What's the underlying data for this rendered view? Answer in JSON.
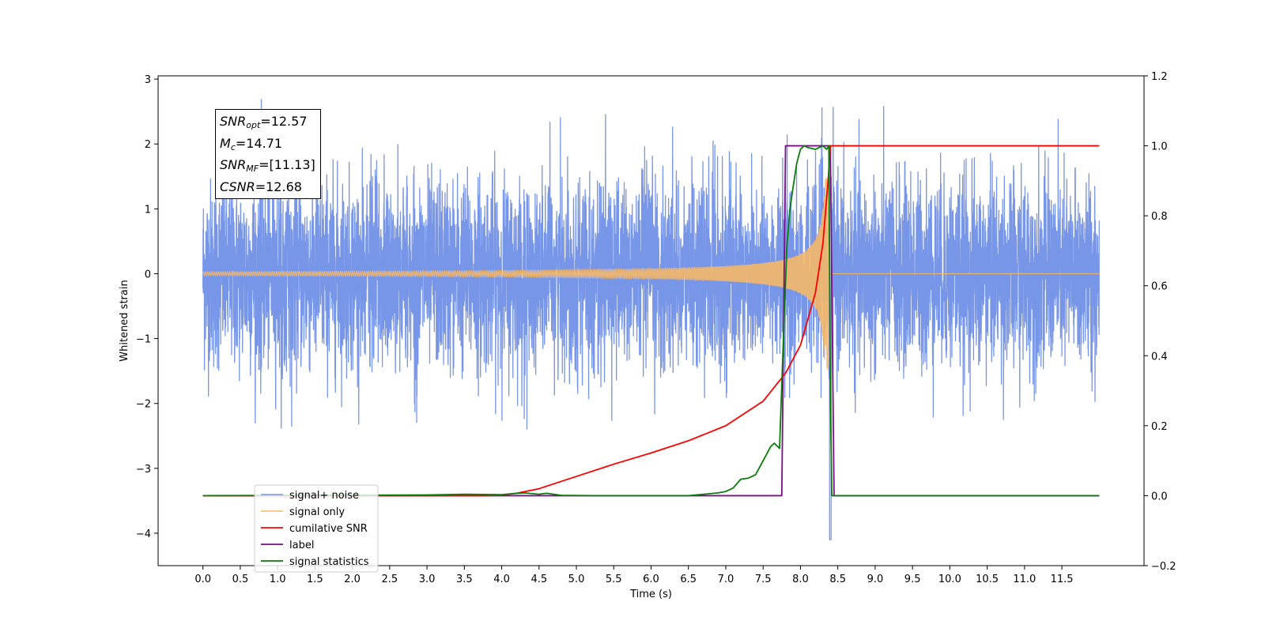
{
  "chart_data": {
    "type": "line",
    "xlabel": "Time (s)",
    "ylabel_left": "Whitened strain",
    "xlim": [
      -0.6,
      12.6
    ],
    "ylim_left": [
      -4.5,
      3.05
    ],
    "ylim_right": [
      -0.2,
      1.2
    ],
    "x_ticks": [
      "0.0",
      "0.5",
      "1.0",
      "1.5",
      "2.0",
      "2.5",
      "3.0",
      "3.5",
      "4.0",
      "4.5",
      "5.0",
      "5.5",
      "6.0",
      "6.5",
      "7.0",
      "7.5",
      "8.0",
      "8.5",
      "9.0",
      "9.5",
      "10.0",
      "10.5",
      "11.0",
      "11.5"
    ],
    "y_ticks_left": [
      "3",
      "2",
      "1",
      "0",
      "−1",
      "−2",
      "−3",
      "−4"
    ],
    "y_ticks_right": [
      "1.2",
      "1.0",
      "0.8",
      "0.6",
      "0.4",
      "0.2",
      "0.0",
      "−0.2"
    ],
    "grid": false,
    "legend_placement": "lower-left",
    "annotations": {
      "snr_opt": {
        "sym": "SNR",
        "sub": "opt",
        "value": "=12.57"
      },
      "mc": {
        "sym": "M",
        "sub": "c",
        "value": "=14.71"
      },
      "snr_mf": {
        "sym": "SNR",
        "sub": "MF",
        "value": "=[11.13]"
      },
      "csnr": {
        "sym": "CSNR",
        "value": "=12.68"
      }
    },
    "series": [
      {
        "name": "signal+ noise",
        "color": "#7896e8",
        "axis": "left",
        "note_range": [
          -2.4,
          2.7
        ],
        "x_range": [
          0.0,
          12.0
        ]
      },
      {
        "name": "signal only",
        "color": "#f5b86a",
        "axis": "left",
        "envelope": {
          "t_merge": 8.38,
          "peak_amplitude": 1.5,
          "x_start": 0.0,
          "x_end": 12.0
        }
      },
      {
        "name": "cumilative SNR",
        "color": "#ff0000",
        "axis": "right",
        "x": [
          0.0,
          3.0,
          3.8,
          4.0,
          4.2,
          4.5,
          5.0,
          5.5,
          6.0,
          6.5,
          7.0,
          7.5,
          7.8,
          8.0,
          8.2,
          8.3,
          8.37,
          8.4,
          12.0
        ],
        "y": [
          0.0,
          0.0,
          0.0,
          0.002,
          0.007,
          0.02,
          0.055,
          0.09,
          0.122,
          0.157,
          0.2,
          0.27,
          0.35,
          0.43,
          0.58,
          0.72,
          0.9,
          1.0,
          1.0
        ]
      },
      {
        "name": "label",
        "color": "#7b0e8a",
        "axis": "right",
        "x": [
          0.0,
          7.75,
          7.8,
          8.4,
          8.45,
          12.0
        ],
        "y": [
          0.0,
          0.0,
          1.0,
          1.0,
          0.0,
          0.0
        ]
      },
      {
        "name": "signal statistics",
        "color": "#0a7d0a",
        "axis": "right",
        "x": [
          0.0,
          3.0,
          3.5,
          4.0,
          4.3,
          4.5,
          4.6,
          4.8,
          5.2,
          6.5,
          6.9,
          7.0,
          7.1,
          7.2,
          7.3,
          7.4,
          7.5,
          7.6,
          7.65,
          7.72,
          7.78,
          7.82,
          7.86,
          7.9,
          7.95,
          8.0,
          8.05,
          8.1,
          8.2,
          8.3,
          8.35,
          8.38,
          8.4,
          8.42,
          8.45,
          12.0
        ],
        "y": [
          0.0,
          0.002,
          0.004,
          0.003,
          0.008,
          0.004,
          0.007,
          0.001,
          0.0,
          0.0,
          0.008,
          0.012,
          0.022,
          0.047,
          0.05,
          0.06,
          0.1,
          0.14,
          0.15,
          0.135,
          0.5,
          0.72,
          0.82,
          0.88,
          0.95,
          0.99,
          1.0,
          0.995,
          0.99,
          1.0,
          0.99,
          1.0,
          0.3,
          0.0,
          0.0,
          0.0
        ]
      }
    ]
  }
}
